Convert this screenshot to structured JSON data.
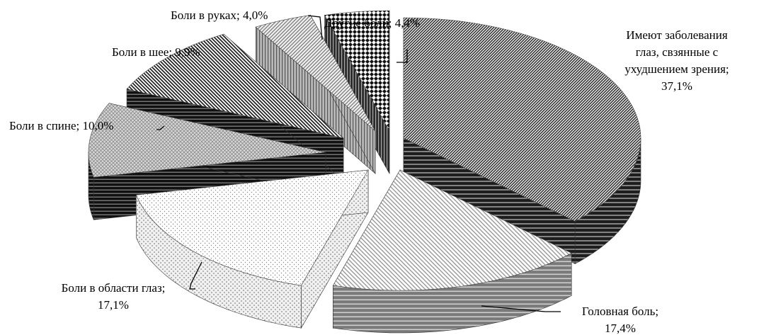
{
  "chart_data": {
    "type": "pie",
    "variant": "3d-exploded",
    "title": "",
    "legend": "none",
    "slices": [
      {
        "label_lines": [
          "Имеют заболевания",
          "глаз, свзянные с",
          "ухудшением зрения;",
          "37,1%"
        ],
        "value": 37.1,
        "pattern": "diag-dense",
        "side": "stripe-dark"
      },
      {
        "label_lines": [
          "Головная боль;",
          "17,4%"
        ],
        "value": 17.4,
        "pattern": "diag-light",
        "side": "stripe-gray"
      },
      {
        "label_lines": [
          "Боли в области глаз;",
          "17,1%"
        ],
        "value": 17.1,
        "pattern": "dots",
        "side": "dots-vert"
      },
      {
        "label_lines": [
          "Боли в спине; 10,0%"
        ],
        "value": 10.0,
        "pattern": "grid-light",
        "side": "stripe-black"
      },
      {
        "label_lines": [
          "Боли в шее; 9,9%"
        ],
        "value": 9.9,
        "pattern": "diag-hatch",
        "side": "stripe-black"
      },
      {
        "label_lines": [
          "Боли в руках; 4,0%"
        ],
        "value": 4.0,
        "pattern": "diag-light-2",
        "side": "vert-gray"
      },
      {
        "label_lines": [
          "Другие боли; 4,4%"
        ],
        "value": 4.4,
        "pattern": "diamond",
        "side": "vert-dark"
      }
    ]
  }
}
